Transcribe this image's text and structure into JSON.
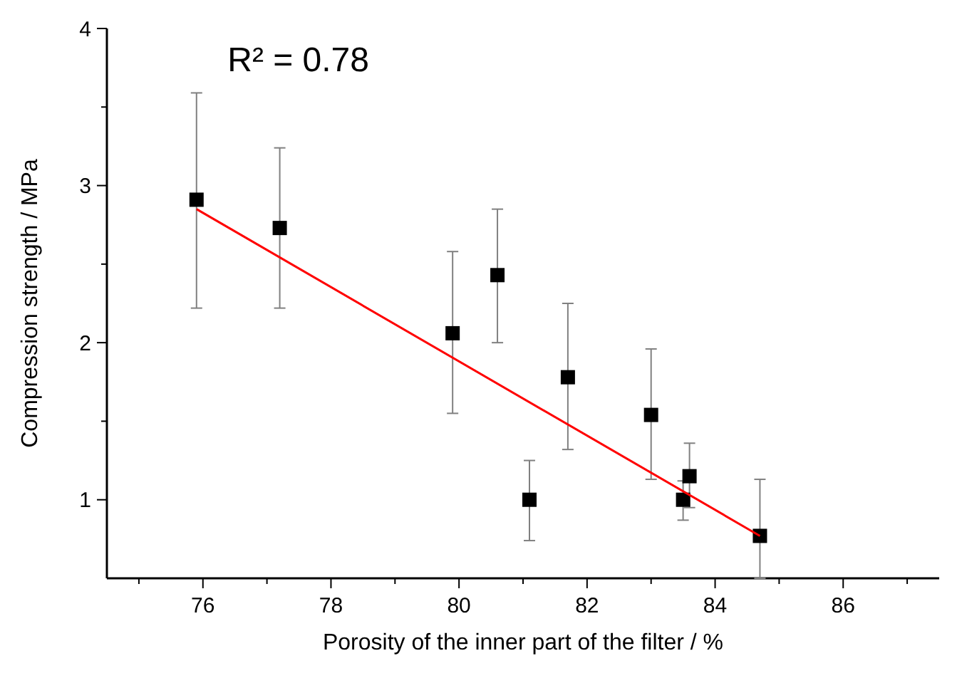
{
  "chart_data": {
    "type": "scatter",
    "xlabel": "Porosity of the inner part of the filter / %",
    "ylabel": "Compression strength / MPa",
    "annotations": [
      "R² = 0.78"
    ],
    "xlim": [
      74.5,
      87.5
    ],
    "xticks": [
      {
        "value": 75,
        "label": null
      },
      76,
      {
        "value": 77,
        "label": null
      },
      78,
      {
        "value": 79,
        "label": null
      },
      80,
      {
        "value": 81,
        "label": null
      },
      82,
      {
        "value": 83,
        "label": null
      },
      84,
      {
        "value": 85,
        "label": null
      },
      86,
      {
        "value": 87,
        "label": null
      }
    ],
    "ylim": [
      0.5,
      4
    ],
    "yticks": [
      1,
      {
        "value": 1.5,
        "label": null
      },
      2,
      {
        "value": 2.5,
        "label": null
      },
      3,
      {
        "value": 3.5,
        "label": null
      },
      4
    ],
    "grid": false,
    "marker": "square",
    "series": [
      {
        "color": "#000000",
        "x": [
          75.9,
          77.2,
          79.9,
          80.6,
          81.1,
          81.7,
          83.0,
          83.5,
          83.6,
          84.7
        ],
        "values": [
          2.91,
          2.73,
          2.06,
          2.43,
          1.0,
          1.78,
          1.54,
          1.0,
          1.15,
          0.77
        ],
        "errors": [
          [
            2.22,
            3.59
          ],
          [
            2.22,
            3.24
          ],
          [
            1.55,
            2.58
          ],
          [
            2.0,
            2.85
          ],
          [
            0.74,
            1.25
          ],
          [
            1.32,
            2.25
          ],
          [
            1.13,
            1.96
          ],
          [
            0.87,
            1.12
          ],
          [
            0.95,
            1.36
          ],
          [
            0.5,
            1.13
          ]
        ]
      },
      {
        "type": "line",
        "color": "#ff0000",
        "marker": "none",
        "line_style": "solid",
        "x": [
          75.9,
          84.7
        ],
        "values": [
          2.85,
          0.77
        ]
      }
    ]
  }
}
